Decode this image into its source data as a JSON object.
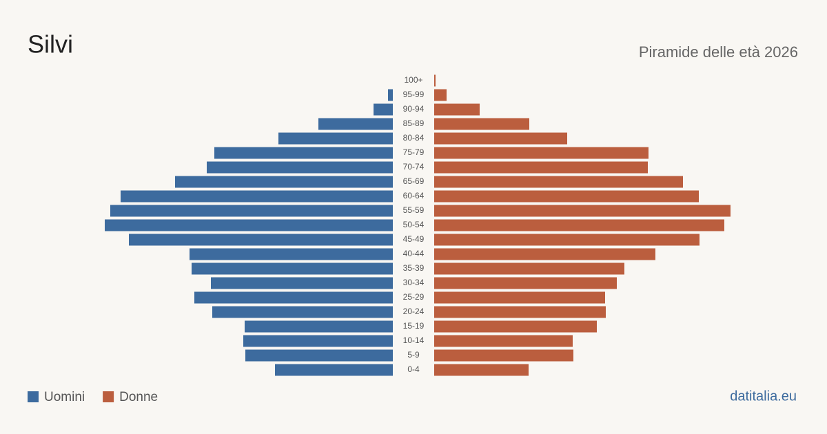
{
  "chart_data": {
    "type": "pyramid",
    "title": "Silvi",
    "subtitle": "Piramide delle età 2026",
    "source": "datitalia.eu",
    "categories": [
      "100+",
      "95-99",
      "90-94",
      "85-89",
      "80-84",
      "75-79",
      "70-74",
      "65-69",
      "60-64",
      "55-59",
      "50-54",
      "45-49",
      "40-44",
      "35-39",
      "30-34",
      "25-29",
      "20-24",
      "15-19",
      "10-14",
      "5-9",
      "0-4"
    ],
    "series": [
      {
        "name": "Uomini",
        "color": "#3d6b9e",
        "values": [
          0,
          7,
          28,
          108,
          166,
          259,
          270,
          316,
          395,
          410,
          418,
          383,
          295,
          292,
          264,
          288,
          262,
          215,
          217,
          214,
          171
        ]
      },
      {
        "name": "Donne",
        "color": "#bb5e3e",
        "values": [
          2,
          18,
          66,
          138,
          193,
          311,
          310,
          361,
          384,
          430,
          421,
          385,
          321,
          276,
          265,
          248,
          249,
          236,
          201,
          202,
          137
        ]
      }
    ],
    "xlim": [
      0,
      440
    ]
  }
}
